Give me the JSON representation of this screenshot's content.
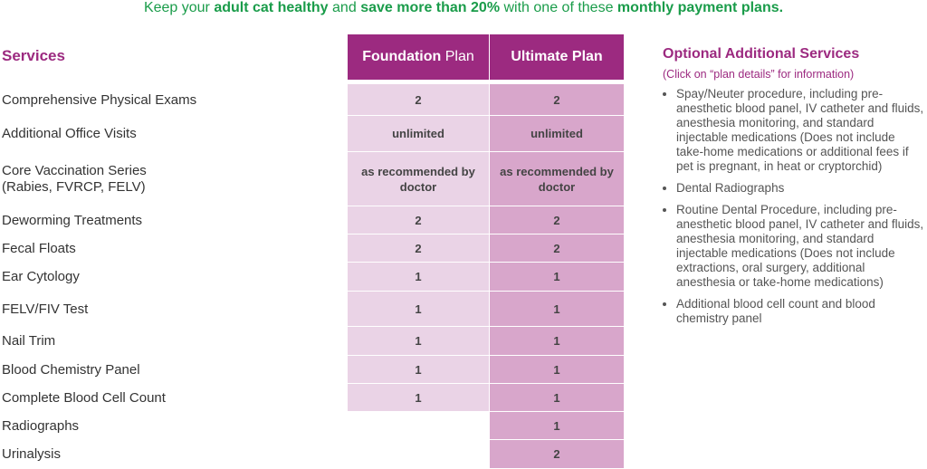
{
  "header": {
    "segments": [
      "Keep your",
      "adult cat healthy",
      "and",
      "save more than 20%",
      "with one of these",
      "monthly payment plans."
    ]
  },
  "table": {
    "services_heading": "Services",
    "plans": [
      {
        "name": "Foundation",
        "suffix": "Plan"
      },
      {
        "name": "Ultimate",
        "suffix": "Plan"
      }
    ],
    "rows": [
      {
        "service": [
          "Comprehensive Physical Exams"
        ],
        "foundation": 2,
        "ultimate": 2
      },
      {
        "service": [
          "Additional Office Visits"
        ],
        "foundation": "unlimited",
        "ultimate": "unlimited"
      },
      {
        "service": [
          "Core Vaccination Series",
          "(Rabies, FVRCP, FELV)"
        ],
        "foundation": "as recommended by doctor",
        "ultimate": "as recommended by doctor"
      },
      {
        "service": [
          "Deworming Treatments"
        ],
        "foundation": 2,
        "ultimate": 2
      },
      {
        "service": [
          "Fecal Floats"
        ],
        "foundation": 2,
        "ultimate": 2
      },
      {
        "service": [
          "Ear Cytology"
        ],
        "foundation": 1,
        "ultimate": 1
      },
      {
        "service": [
          "FELV/FIV Test"
        ],
        "foundation": 1,
        "ultimate": 1
      },
      {
        "service": [
          "Nail Trim"
        ],
        "foundation": 1,
        "ultimate": 1
      },
      {
        "service": [
          "Blood Chemistry Panel"
        ],
        "foundation": 1,
        "ultimate": 1
      },
      {
        "service": [
          "Complete Blood Cell Count"
        ],
        "foundation": 1,
        "ultimate": 1
      },
      {
        "service": [
          "Radiographs"
        ],
        "foundation": null,
        "ultimate": 1
      },
      {
        "service": [
          "Urinalysis"
        ],
        "foundation": null,
        "ultimate": 2
      }
    ]
  },
  "optional": {
    "title": "Optional Additional Services",
    "note": "(Click on “plan details” for information)",
    "items": [
      "Spay/Neuter procedure, including pre-anesthetic blood panel, IV catheter and fluids, anesthesia monitoring, and standard injectable medications  (Does not include take-home medications or additional fees if pet is pregnant, in heat or cryptorchid)",
      "Dental Radiographs",
      "Routine Dental Procedure, including pre-anesthetic blood panel, IV catheter and fluids, anesthesia monitoring, and standard injectable medications (Does not include extractions, oral surgery, additional anesthesia or take-home medications)",
      "Additional blood cell count and blood chemistry panel"
    ]
  }
}
